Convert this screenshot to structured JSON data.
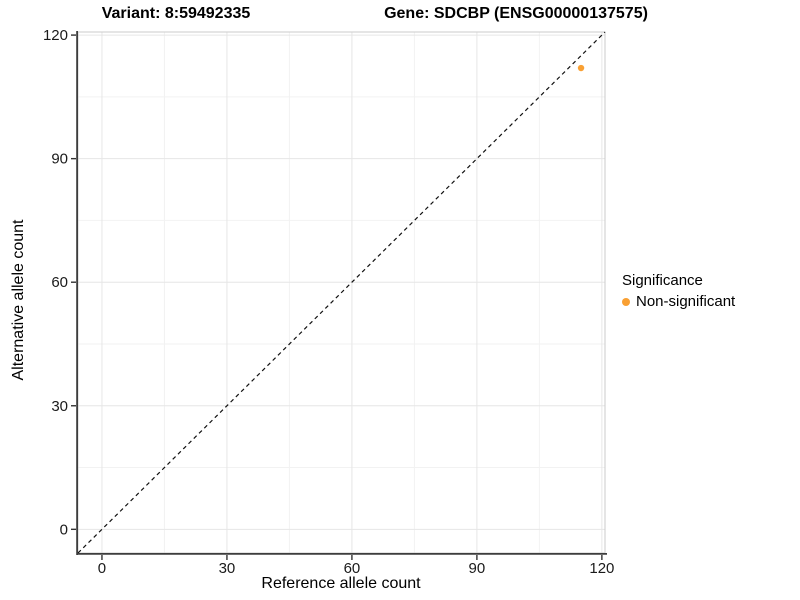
{
  "chart_data": {
    "type": "scatter",
    "title_variant": "Variant: 8:59492335",
    "title_gene": "Gene: SDCBP (ENSG00000137575)",
    "xlabel": "Reference allele count",
    "ylabel": "Alternative allele count",
    "xlim": [
      -5.75,
      120.75
    ],
    "ylim": [
      -5.75,
      120.75
    ],
    "xticks": [
      0,
      30,
      60,
      90,
      120
    ],
    "yticks": [
      0,
      30,
      60,
      90,
      120
    ],
    "xminor": [
      15,
      45,
      75,
      105
    ],
    "yminor": [
      15,
      45,
      75,
      105
    ],
    "grid": true,
    "identity_line": {
      "slope": 1,
      "intercept": 0,
      "style": "dashed",
      "color": "#111111"
    },
    "series": [
      {
        "name": "Non-significant",
        "color": "#F9A033",
        "points": [
          {
            "x": 115,
            "y": 112,
            "reference_allele_count": 115,
            "alternative_allele_count": 112,
            "significance": "Non-significant"
          }
        ]
      }
    ],
    "legend": {
      "position": "right",
      "title": "Significance",
      "items": [
        {
          "label": "Non-significant",
          "color": "#F9A033",
          "marker": "dot"
        }
      ]
    },
    "colors": {
      "point_orange": "#F9A033",
      "axis_line": "#3d3d3d",
      "tick": "#333333",
      "panel_border": "#CBCBCB",
      "grid_major": "#E6E6E6",
      "grid_minor": "#F2F2F2"
    }
  }
}
